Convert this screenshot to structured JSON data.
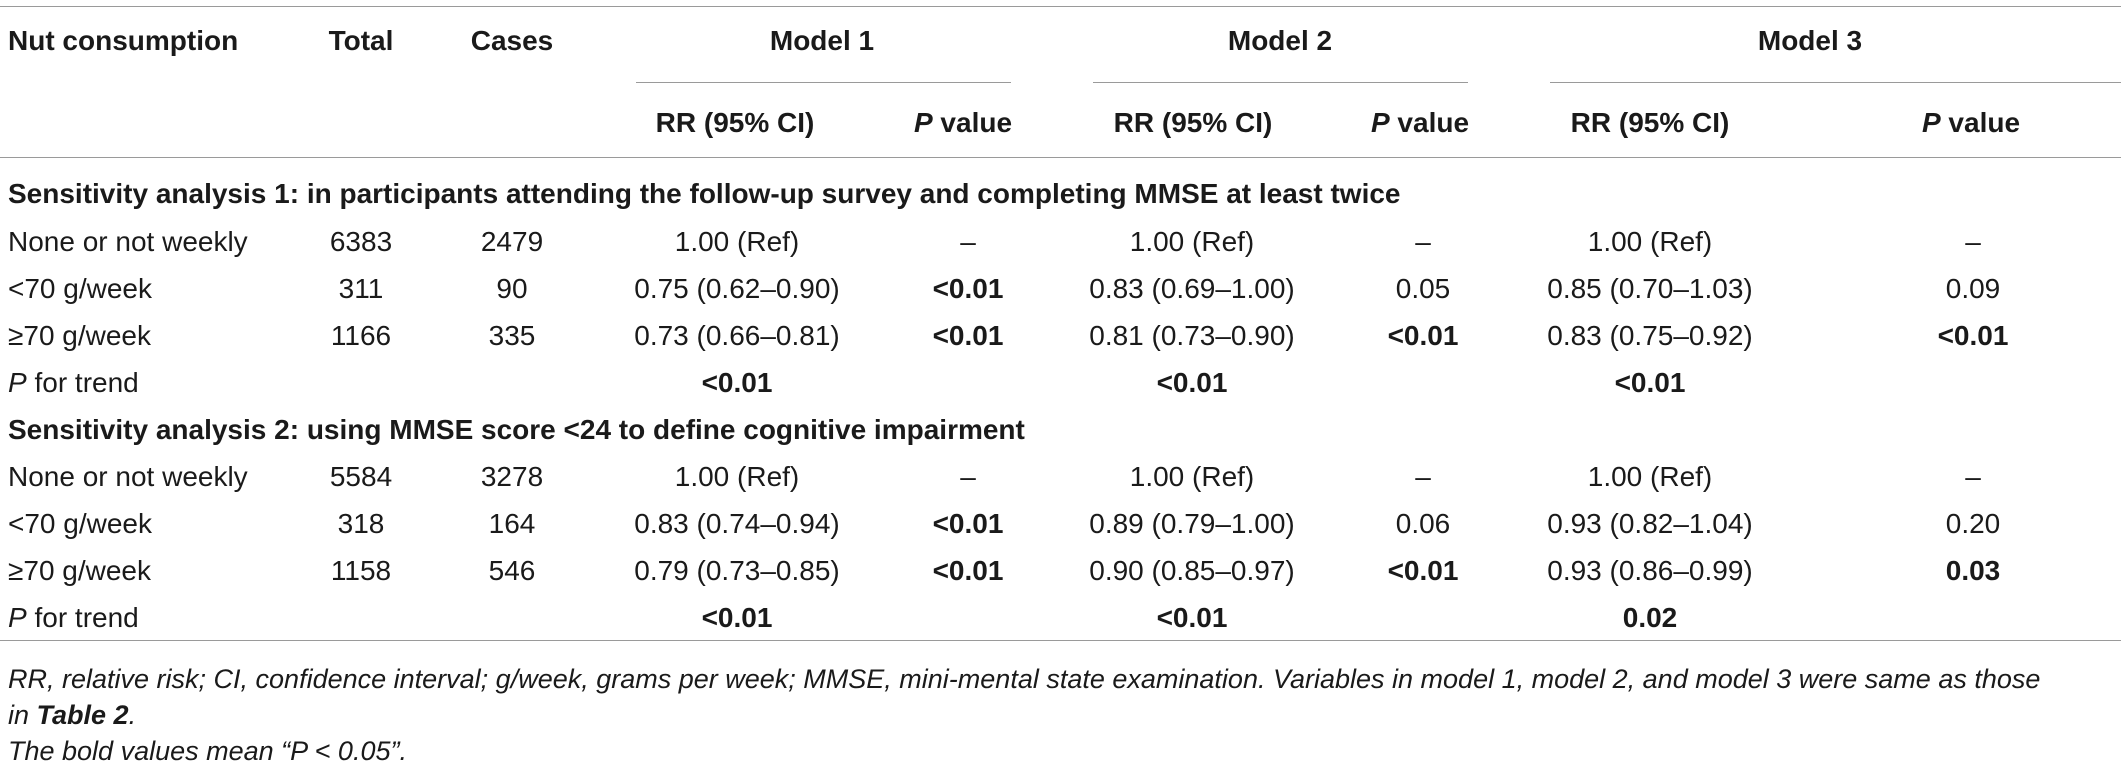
{
  "table": {
    "columns": {
      "nut": "Nut consumption",
      "total": "Total",
      "cases": "Cases",
      "model1": "Model 1",
      "model2": "Model 2",
      "model3": "Model 3",
      "rr": "RR (95% CI)",
      "p_italic": "P",
      "p_rest": " value"
    },
    "sections": [
      {
        "title": "Sensitivity analysis 1: in participants attending the follow-up survey and completing MMSE at least twice",
        "rows": [
          {
            "label": "None or not weekly",
            "total": "6383",
            "cases": "2479",
            "m1_rr": "1.00 (Ref)",
            "m1_p": "–",
            "m2_rr": "1.00 (Ref)",
            "m2_p": "–",
            "m3_rr": "1.00 (Ref)",
            "m3_p": "–"
          },
          {
            "label": "<70 g/week",
            "total": "311",
            "cases": "90",
            "m1_rr": "0.75 (0.62–0.90)",
            "m1_p": "<0.01",
            "m2_rr": "0.83 (0.69–1.00)",
            "m2_p": "0.05",
            "m3_rr": "0.85 (0.70–1.03)",
            "m3_p": "0.09"
          },
          {
            "label": "≥70 g/week",
            "total": "1166",
            "cases": "335",
            "m1_rr": "0.73 (0.66–0.81)",
            "m1_p": "<0.01",
            "m2_rr": "0.81 (0.73–0.90)",
            "m2_p": "<0.01",
            "m3_rr": "0.83 (0.75–0.92)",
            "m3_p": "<0.01"
          }
        ],
        "trend": {
          "label_italic": "P",
          "label_rest": " for trend",
          "m1": "<0.01",
          "m2": "<0.01",
          "m3": "<0.01"
        }
      },
      {
        "title": "Sensitivity analysis 2: using MMSE score <24 to define cognitive impairment",
        "rows": [
          {
            "label": "None or not weekly",
            "total": "5584",
            "cases": "3278",
            "m1_rr": "1.00 (Ref)",
            "m1_p": "–",
            "m2_rr": "1.00 (Ref)",
            "m2_p": "–",
            "m3_rr": "1.00 (Ref)",
            "m3_p": "–"
          },
          {
            "label": "<70 g/week",
            "total": "318",
            "cases": "164",
            "m1_rr": "0.83 (0.74–0.94)",
            "m1_p": "<0.01",
            "m2_rr": "0.89 (0.79–1.00)",
            "m2_p": "0.06",
            "m3_rr": "0.93 (0.82–1.04)",
            "m3_p": "0.20"
          },
          {
            "label": "≥70 g/week",
            "total": "1158",
            "cases": "546",
            "m1_rr": "0.79 (0.73–0.85)",
            "m1_p": "<0.01",
            "m2_rr": "0.90 (0.85–0.97)",
            "m2_p": "<0.01",
            "m3_rr": "0.93 (0.86–0.99)",
            "m3_p": "0.03"
          }
        ],
        "trend": {
          "label_italic": "P",
          "label_rest": " for trend",
          "m1": "<0.01",
          "m2": "<0.01",
          "m3": "0.02"
        }
      }
    ]
  },
  "footnotes": {
    "line1": "RR, relative risk; CI, confidence interval; g/week, grams per week; MMSE, mini-mental state examination. Variables in model 1, model 2, and model 3 were same as those",
    "line2_pre": "in ",
    "line2_ref": "Table 2",
    "line2_post": ".",
    "line3": "The bold values mean “P < 0.05”."
  }
}
